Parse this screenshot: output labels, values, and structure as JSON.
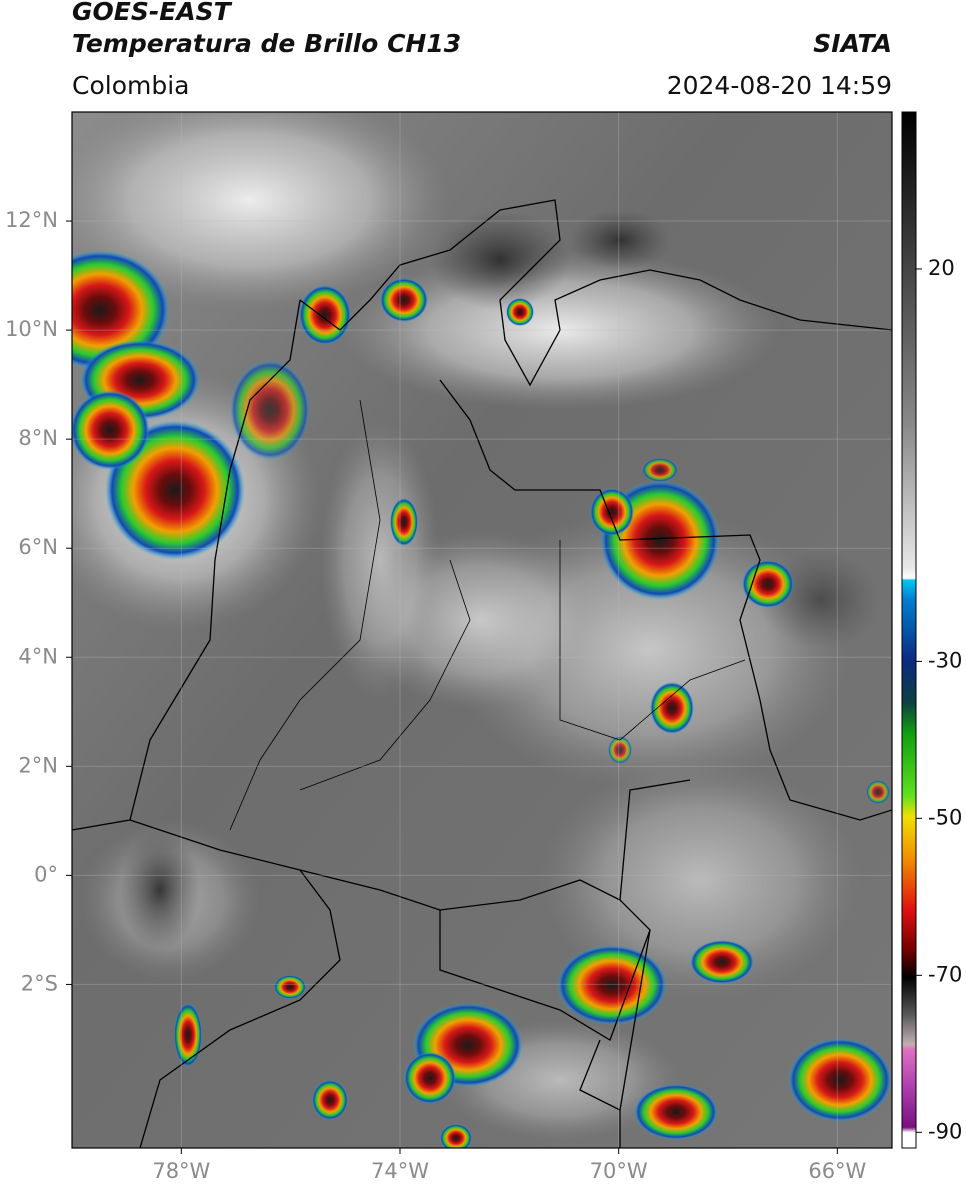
{
  "header": {
    "title": "GOES-EAST",
    "subtitle": "Temperatura de Brillo CH13",
    "region": "Colombia",
    "source": "SIATA",
    "datetime": "2024-08-20 14:59"
  },
  "map": {
    "lonlim": [
      -80,
      -65
    ],
    "latlim": [
      -5,
      14
    ],
    "lat_ticks": [
      {
        "value": 12,
        "label": "12°N"
      },
      {
        "value": 10,
        "label": "10°N"
      },
      {
        "value": 8,
        "label": "8°N"
      },
      {
        "value": 6,
        "label": "6°N"
      },
      {
        "value": 4,
        "label": "4°N"
      },
      {
        "value": 2,
        "label": "2°N"
      },
      {
        "value": 0,
        "label": "0°"
      },
      {
        "value": -2,
        "label": "2°S"
      }
    ],
    "lon_ticks": [
      {
        "value": -78,
        "label": "78°W"
      },
      {
        "value": -74,
        "label": "74°W"
      },
      {
        "value": -70,
        "label": "70°W"
      },
      {
        "value": -66,
        "label": "66°W"
      }
    ]
  },
  "colorbar": {
    "clim": [
      -92,
      40
    ],
    "ticks": [
      20,
      -30,
      -50,
      -70,
      -90
    ]
  }
}
